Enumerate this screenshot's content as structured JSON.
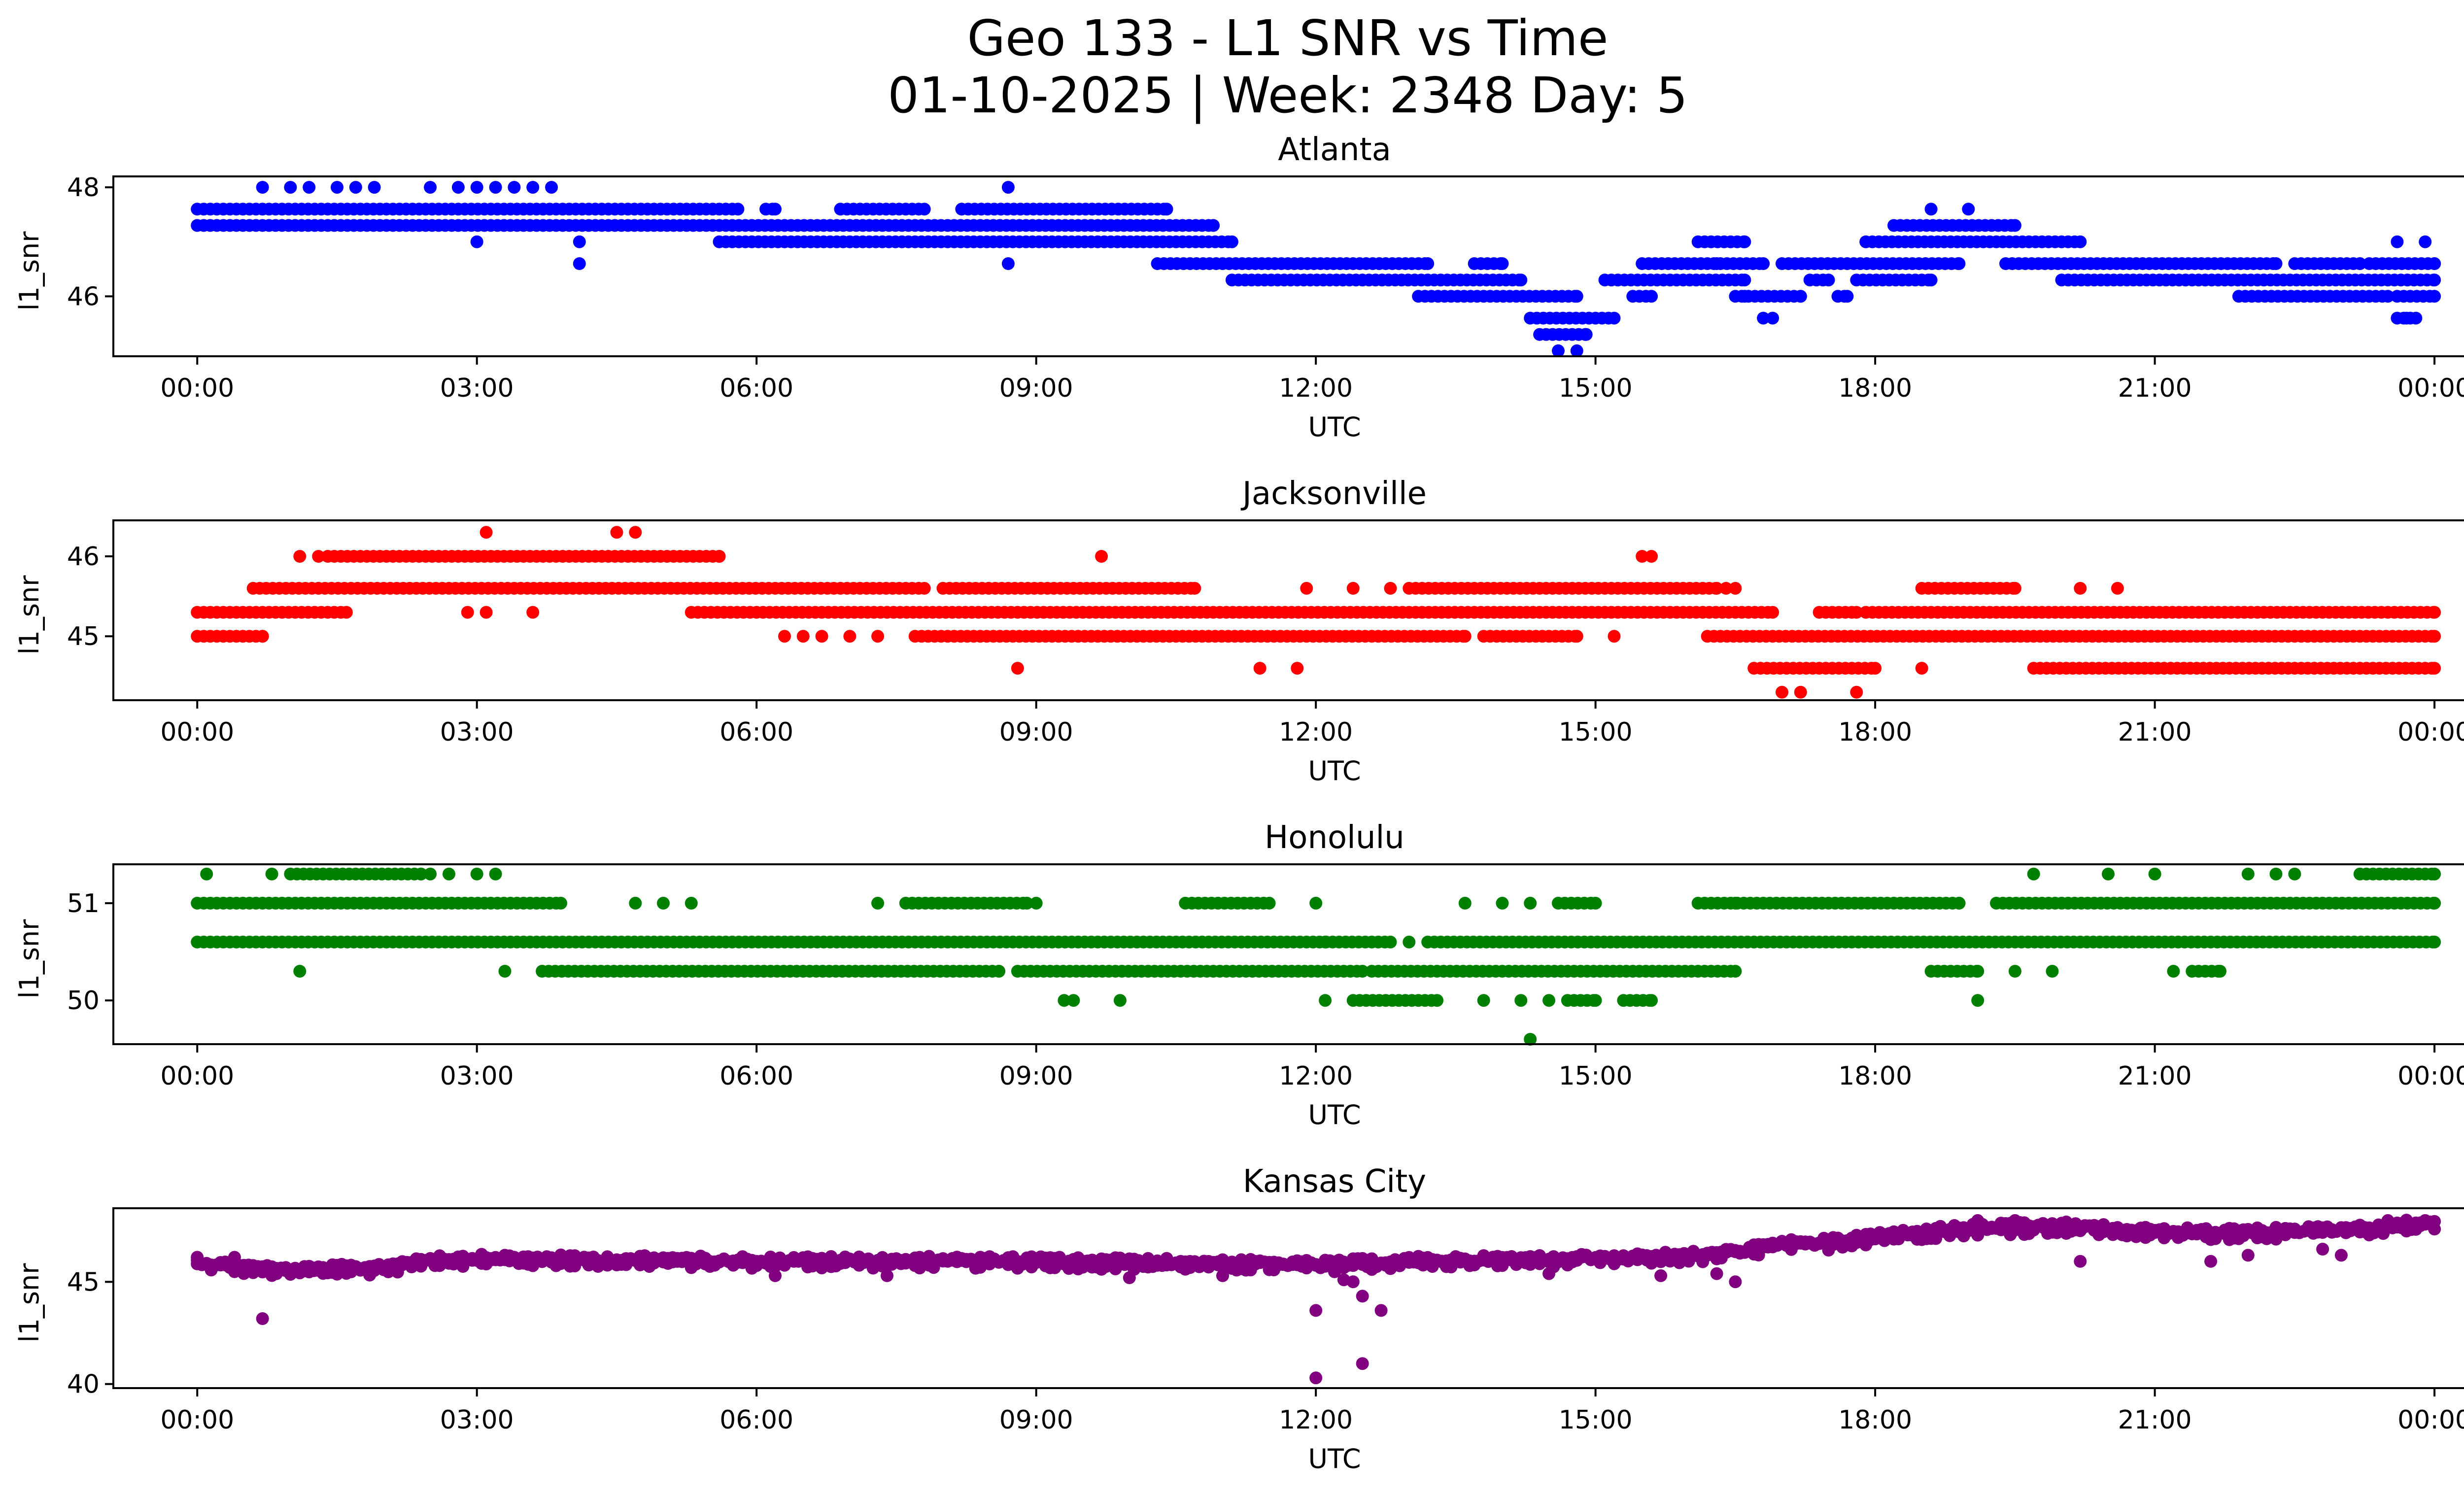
{
  "figure": {
    "title_line1": "Geo 133 - L1 SNR vs Time",
    "title_line2": "01-10-2025 | Week: 2348 Day: 5"
  },
  "chart_data": [
    {
      "type": "scatter",
      "title": "Atlanta",
      "xlabel": "UTC",
      "ylabel": "l1_snr",
      "color": "#0000ff",
      "xlim": [
        -0.9,
        25.3
      ],
      "ylim": [
        44.9,
        48.2
      ],
      "x_ticks": [
        0,
        3,
        6,
        9,
        12,
        15,
        18,
        21,
        24
      ],
      "x_tick_labels": [
        "00:00",
        "03:00",
        "06:00",
        "09:00",
        "12:00",
        "15:00",
        "18:00",
        "21:00",
        "00:00"
      ],
      "y_ticks": [
        46,
        48
      ],
      "y_tick_labels": [
        "46",
        "48"
      ],
      "bands": [
        {
          "y": 47.6,
          "ranges": [
            [
              0,
              5.8
            ],
            [
              6.1,
              6.2
            ],
            [
              6.9,
              7.8
            ],
            [
              8.2,
              10.4
            ]
          ]
        },
        {
          "y": 47.3,
          "ranges": [
            [
              0,
              10.9
            ],
            [
              18.2,
              19.5
            ]
          ]
        },
        {
          "y": 47.0,
          "ranges": [
            [
              5.6,
              11.1
            ],
            [
              16.1,
              16.6
            ],
            [
              17.9,
              20.2
            ]
          ]
        },
        {
          "y": 46.6,
          "ranges": [
            [
              10.3,
              13.2
            ],
            [
              13.7,
              14.0
            ],
            [
              15.5,
              16.8
            ],
            [
              17.0,
              18.9
            ],
            [
              19.4,
              22.3
            ],
            [
              22.5,
              23.2
            ],
            [
              23.3,
              24.0
            ]
          ]
        },
        {
          "y": 46.3,
          "ranges": [
            [
              11.1,
              14.2
            ],
            [
              15.1,
              16.6
            ],
            [
              17.3,
              17.5
            ],
            [
              17.8,
              18.6
            ],
            [
              20.0,
              24.0
            ]
          ]
        },
        {
          "y": 46.0,
          "ranges": [
            [
              13.1,
              14.8
            ],
            [
              15.4,
              15.6
            ],
            [
              16.5,
              17.2
            ],
            [
              17.6,
              17.7
            ],
            [
              21.9,
              23.5
            ],
            [
              23.6,
              24.0
            ]
          ]
        },
        {
          "y": 45.6,
          "ranges": [
            [
              14.3,
              15.2
            ],
            [
              23.6,
              23.8
            ]
          ]
        },
        {
          "y": 45.3,
          "ranges": [
            [
              14.4,
              14.9
            ]
          ]
        }
      ],
      "points": [
        [
          0.7,
          48.0
        ],
        [
          1.0,
          48.0
        ],
        [
          1.2,
          48.0
        ],
        [
          1.5,
          48.0
        ],
        [
          1.7,
          48.0
        ],
        [
          1.9,
          48.0
        ],
        [
          2.5,
          48.0
        ],
        [
          2.8,
          48.0
        ],
        [
          3.0,
          48.0
        ],
        [
          3.2,
          48.0
        ],
        [
          3.4,
          48.0
        ],
        [
          3.6,
          48.0
        ],
        [
          3.8,
          48.0
        ],
        [
          8.7,
          48.0
        ],
        [
          3.0,
          47.0
        ],
        [
          4.1,
          47.0
        ],
        [
          4.1,
          46.6
        ],
        [
          8.7,
          46.6
        ],
        [
          14.6,
          45.0
        ],
        [
          14.8,
          45.0
        ],
        [
          16.3,
          46.6
        ],
        [
          16.6,
          46.0
        ],
        [
          16.8,
          45.6
        ],
        [
          16.9,
          45.6
        ],
        [
          18.6,
          47.6
        ],
        [
          19.0,
          47.6
        ],
        [
          23.6,
          47.0
        ],
        [
          23.9,
          47.0
        ],
        [
          23.7,
          45.6
        ]
      ]
    },
    {
      "type": "scatter",
      "title": "Jacksonville",
      "xlabel": "UTC",
      "ylabel": "l1_snr",
      "color": "#ff0000",
      "xlim": [
        -0.9,
        25.3
      ],
      "ylim": [
        44.2,
        46.45
      ],
      "x_ticks": [
        0,
        3,
        6,
        9,
        12,
        15,
        18,
        21,
        24
      ],
      "x_tick_labels": [
        "00:00",
        "03:00",
        "06:00",
        "09:00",
        "12:00",
        "15:00",
        "18:00",
        "21:00",
        "00:00"
      ],
      "y_ticks": [
        45,
        46
      ],
      "y_tick_labels": [
        "45",
        "46"
      ],
      "bands": [
        {
          "y": 46.0,
          "ranges": [
            [
              1.4,
              5.6
            ]
          ]
        },
        {
          "y": 45.6,
          "ranges": [
            [
              0.6,
              7.8
            ],
            [
              8.0,
              10.7
            ],
            [
              13.0,
              16.3
            ],
            [
              18.5,
              19.5
            ]
          ]
        },
        {
          "y": 45.3,
          "ranges": [
            [
              0,
              1.6
            ],
            [
              5.3,
              16.9
            ],
            [
              17.4,
              17.8
            ],
            [
              17.9,
              24.0
            ]
          ]
        },
        {
          "y": 45.0,
          "ranges": [
            [
              0,
              0.7
            ],
            [
              7.7,
              13.6
            ],
            [
              13.8,
              14.8
            ],
            [
              16.2,
              24.0
            ]
          ]
        },
        {
          "y": 44.6,
          "ranges": [
            [
              16.7,
              18.0
            ],
            [
              19.7,
              24.0
            ]
          ]
        }
      ],
      "points": [
        [
          1.1,
          46.0
        ],
        [
          1.3,
          46.0
        ],
        [
          3.1,
          46.3
        ],
        [
          4.5,
          46.3
        ],
        [
          4.7,
          46.3
        ],
        [
          9.7,
          46.0
        ],
        [
          15.5,
          46.0
        ],
        [
          15.6,
          46.0
        ],
        [
          2.9,
          45.3
        ],
        [
          3.1,
          45.3
        ],
        [
          3.6,
          45.3
        ],
        [
          6.3,
          45.0
        ],
        [
          6.5,
          45.0
        ],
        [
          6.7,
          45.0
        ],
        [
          7.0,
          45.0
        ],
        [
          7.3,
          45.0
        ],
        [
          8.8,
          44.6
        ],
        [
          11.4,
          44.6
        ],
        [
          11.8,
          44.6
        ],
        [
          11.9,
          45.6
        ],
        [
          12.4,
          45.6
        ],
        [
          12.8,
          45.6
        ],
        [
          15.2,
          45.0
        ],
        [
          16.4,
          45.6
        ],
        [
          16.5,
          45.6
        ],
        [
          17.0,
          44.3
        ],
        [
          17.2,
          44.3
        ],
        [
          17.8,
          44.3
        ],
        [
          18.5,
          44.6
        ],
        [
          20.2,
          45.6
        ],
        [
          20.6,
          45.6
        ]
      ]
    },
    {
      "type": "scatter",
      "title": "Honolulu",
      "xlabel": "UTC",
      "ylabel": "l1_snr",
      "color": "#008000",
      "xlim": [
        -0.9,
        25.3
      ],
      "ylim": [
        49.55,
        51.4
      ],
      "x_ticks": [
        0,
        3,
        6,
        9,
        12,
        15,
        18,
        21,
        24
      ],
      "x_tick_labels": [
        "00:00",
        "03:00",
        "06:00",
        "09:00",
        "12:00",
        "15:00",
        "18:00",
        "21:00",
        "00:00"
      ],
      "y_ticks": [
        50,
        51
      ],
      "y_tick_labels": [
        "50",
        "51"
      ],
      "bands": [
        {
          "y": 51.3,
          "ranges": [
            [
              1.0,
              2.4
            ],
            [
              23.2,
              24.0
            ]
          ]
        },
        {
          "y": 51.0,
          "ranges": [
            [
              0,
              3.9
            ],
            [
              7.6,
              8.9
            ],
            [
              10.6,
              11.5
            ],
            [
              14.6,
              15.0
            ],
            [
              16.1,
              18.9
            ],
            [
              19.3,
              24.0
            ]
          ]
        },
        {
          "y": 50.6,
          "ranges": [
            [
              0,
              12.8
            ],
            [
              13.2,
              24.0
            ]
          ]
        },
        {
          "y": 50.3,
          "ranges": [
            [
              3.7,
              8.6
            ],
            [
              8.8,
              12.5
            ],
            [
              12.6,
              16.5
            ],
            [
              18.6,
              19.1
            ],
            [
              21.4,
              21.7
            ]
          ]
        },
        {
          "y": 50.0,
          "ranges": [
            [
              12.4,
              13.3
            ],
            [
              14.7,
              15.0
            ],
            [
              15.3,
              15.6
            ]
          ]
        }
      ],
      "points": [
        [
          0.1,
          51.3
        ],
        [
          0.8,
          51.3
        ],
        [
          2.5,
          51.3
        ],
        [
          2.7,
          51.3
        ],
        [
          3.0,
          51.3
        ],
        [
          3.2,
          51.3
        ],
        [
          4.7,
          51.0
        ],
        [
          5.0,
          51.0
        ],
        [
          5.3,
          51.0
        ],
        [
          7.3,
          51.0
        ],
        [
          9.0,
          51.0
        ],
        [
          12.0,
          51.0
        ],
        [
          13.6,
          51.0
        ],
        [
          14.0,
          51.0
        ],
        [
          14.3,
          51.0
        ],
        [
          16.5,
          51.0
        ],
        [
          1.1,
          50.3
        ],
        [
          3.3,
          50.3
        ],
        [
          9.3,
          50.0
        ],
        [
          9.4,
          50.0
        ],
        [
          9.9,
          50.0
        ],
        [
          12.1,
          50.0
        ],
        [
          13.8,
          50.0
        ],
        [
          14.2,
          50.0
        ],
        [
          14.5,
          50.0
        ],
        [
          14.3,
          49.6
        ],
        [
          19.1,
          50.0
        ],
        [
          19.7,
          51.3
        ],
        [
          20.5,
          51.3
        ],
        [
          21.0,
          51.3
        ],
        [
          22.0,
          51.3
        ],
        [
          22.3,
          51.3
        ],
        [
          22.5,
          51.3
        ],
        [
          12.1,
          50.6
        ],
        [
          13.0,
          50.6
        ],
        [
          19.5,
          50.3
        ],
        [
          19.9,
          50.3
        ],
        [
          21.2,
          50.3
        ]
      ]
    },
    {
      "type": "scatter",
      "title": "Kansas City",
      "xlabel": "UTC",
      "ylabel": "l1_snr",
      "color": "#800080",
      "xlim": [
        -0.9,
        25.3
      ],
      "ylim": [
        39.8,
        48.6
      ],
      "x_ticks": [
        0,
        3,
        6,
        9,
        12,
        15,
        18,
        21,
        24
      ],
      "x_tick_labels": [
        "00:00",
        "03:00",
        "06:00",
        "09:00",
        "12:00",
        "15:00",
        "18:00",
        "21:00",
        "00:00"
      ],
      "y_ticks": [
        40,
        45
      ],
      "y_tick_labels": [
        "40",
        "45"
      ],
      "curve": [
        [
          0.0,
          45.8
        ],
        [
          1.0,
          45.4
        ],
        [
          2.0,
          45.6
        ],
        [
          2.5,
          46.0
        ],
        [
          3.0,
          46.0
        ],
        [
          6.0,
          45.9
        ],
        [
          9.0,
          45.9
        ],
        [
          10.5,
          45.8
        ],
        [
          12.0,
          45.7
        ],
        [
          13.0,
          45.9
        ],
        [
          15.0,
          46.0
        ],
        [
          16.3,
          46.2
        ],
        [
          17.0,
          46.7
        ],
        [
          17.5,
          46.8
        ],
        [
          18.0,
          47.1
        ],
        [
          19.0,
          47.5
        ],
        [
          20.0,
          47.6
        ],
        [
          21.0,
          47.3
        ],
        [
          22.0,
          47.3
        ],
        [
          23.0,
          47.4
        ],
        [
          24.0,
          47.8
        ]
      ],
      "points": [
        [
          0.7,
          43.2
        ],
        [
          12.0,
          40.3
        ],
        [
          12.0,
          43.6
        ],
        [
          12.5,
          41.0
        ],
        [
          12.5,
          44.3
        ],
        [
          12.4,
          45.0
        ],
        [
          12.7,
          43.6
        ],
        [
          16.5,
          45.0
        ],
        [
          16.3,
          45.4
        ],
        [
          20.2,
          46.0
        ],
        [
          21.6,
          46.0
        ],
        [
          22.0,
          46.3
        ],
        [
          22.8,
          46.6
        ],
        [
          23.0,
          46.3
        ],
        [
          6.2,
          45.3
        ],
        [
          7.4,
          45.3
        ],
        [
          10.0,
          45.2
        ],
        [
          11.0,
          45.3
        ],
        [
          12.3,
          45.1
        ],
        [
          14.5,
          45.4
        ],
        [
          15.7,
          45.3
        ],
        [
          19.1,
          48.0
        ],
        [
          19.5,
          48.0
        ],
        [
          23.5,
          48.0
        ],
        [
          23.9,
          48.0
        ],
        [
          0.0,
          46.2
        ],
        [
          0.4,
          46.2
        ]
      ]
    }
  ]
}
